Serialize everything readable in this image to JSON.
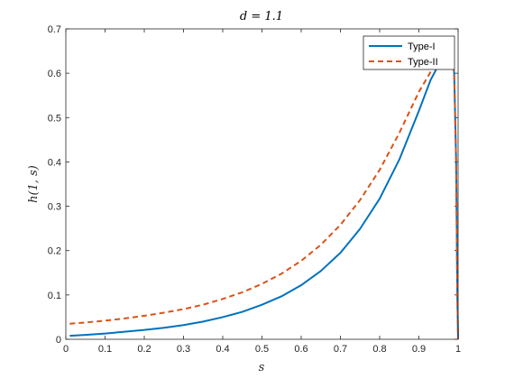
{
  "chart_data": {
    "type": "line",
    "title": "d = 1.1",
    "xlabel": "s",
    "ylabel": "h(1, s)",
    "xlim": [
      0,
      1
    ],
    "ylim": [
      0,
      0.7
    ],
    "xticks": [
      "0",
      "0.1",
      "0.2",
      "0.3",
      "0.4",
      "0.5",
      "0.6",
      "0.7",
      "0.8",
      "0.9",
      "1"
    ],
    "yticks": [
      "0",
      "0.1",
      "0.2",
      "0.3",
      "0.4",
      "0.5",
      "0.6",
      "0.7"
    ],
    "grid": false,
    "legend_position": "top-right",
    "series": [
      {
        "name": "Type-I",
        "color": "#0072BD",
        "style": "solid",
        "x": [
          0.01,
          0.05,
          0.1,
          0.15,
          0.2,
          0.25,
          0.3,
          0.35,
          0.4,
          0.45,
          0.5,
          0.55,
          0.6,
          0.65,
          0.7,
          0.75,
          0.8,
          0.85,
          0.9,
          0.93,
          0.96,
          0.975,
          0.985,
          0.99,
          0.995,
          0.998,
          1.0
        ],
        "values": [
          0.008,
          0.01,
          0.013,
          0.017,
          0.021,
          0.026,
          0.032,
          0.04,
          0.05,
          0.062,
          0.078,
          0.097,
          0.122,
          0.154,
          0.195,
          0.249,
          0.317,
          0.405,
          0.515,
          0.585,
          0.635,
          0.648,
          0.643,
          0.6,
          0.4,
          0.1,
          0.0
        ]
      },
      {
        "name": "Type-II",
        "color": "#D95319",
        "style": "dashed",
        "x": [
          0.01,
          0.05,
          0.1,
          0.15,
          0.2,
          0.25,
          0.3,
          0.35,
          0.4,
          0.45,
          0.5,
          0.55,
          0.6,
          0.65,
          0.7,
          0.75,
          0.8,
          0.85,
          0.9,
          0.93,
          0.96,
          0.975,
          0.985,
          0.99,
          0.995,
          0.998,
          1.0
        ],
        "values": [
          0.035,
          0.038,
          0.042,
          0.047,
          0.053,
          0.06,
          0.068,
          0.078,
          0.091,
          0.106,
          0.125,
          0.148,
          0.177,
          0.213,
          0.258,
          0.314,
          0.382,
          0.465,
          0.558,
          0.603,
          0.63,
          0.64,
          0.642,
          0.6,
          0.4,
          0.1,
          0.0
        ]
      }
    ]
  }
}
